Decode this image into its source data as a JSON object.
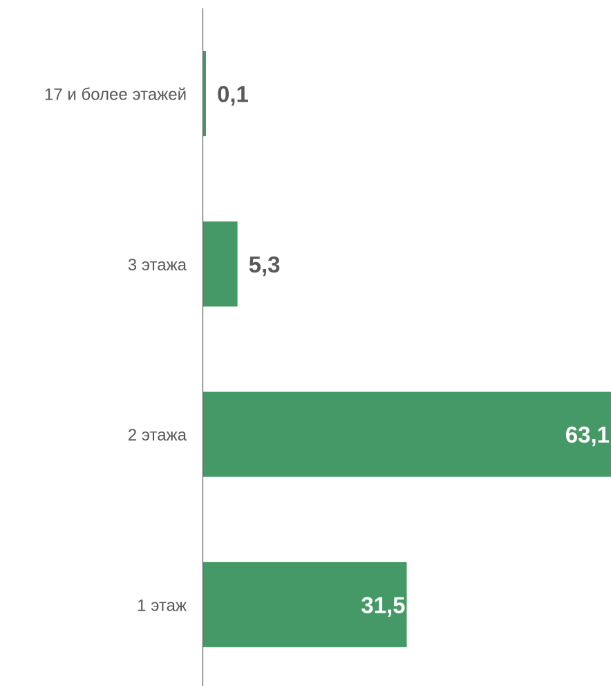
{
  "chart_data": {
    "type": "bar",
    "orientation": "horizontal",
    "categories": [
      "17 и более этажей",
      "3 этажа",
      "2 этажа",
      "1 этаж"
    ],
    "values": [
      0.1,
      5.3,
      63.1,
      31.5
    ],
    "data_labels": [
      "0,1",
      "5,3",
      "63,1",
      "31,5"
    ],
    "title": "",
    "xlabel": "",
    "ylabel": "",
    "xlim": [
      0,
      63.1
    ],
    "grid": false,
    "legend": "none",
    "colors": {
      "bar": "#459966",
      "axis": "#595959",
      "category_text": "#595959",
      "label_outside": "#595959",
      "label_inside": "#ffffff"
    }
  }
}
